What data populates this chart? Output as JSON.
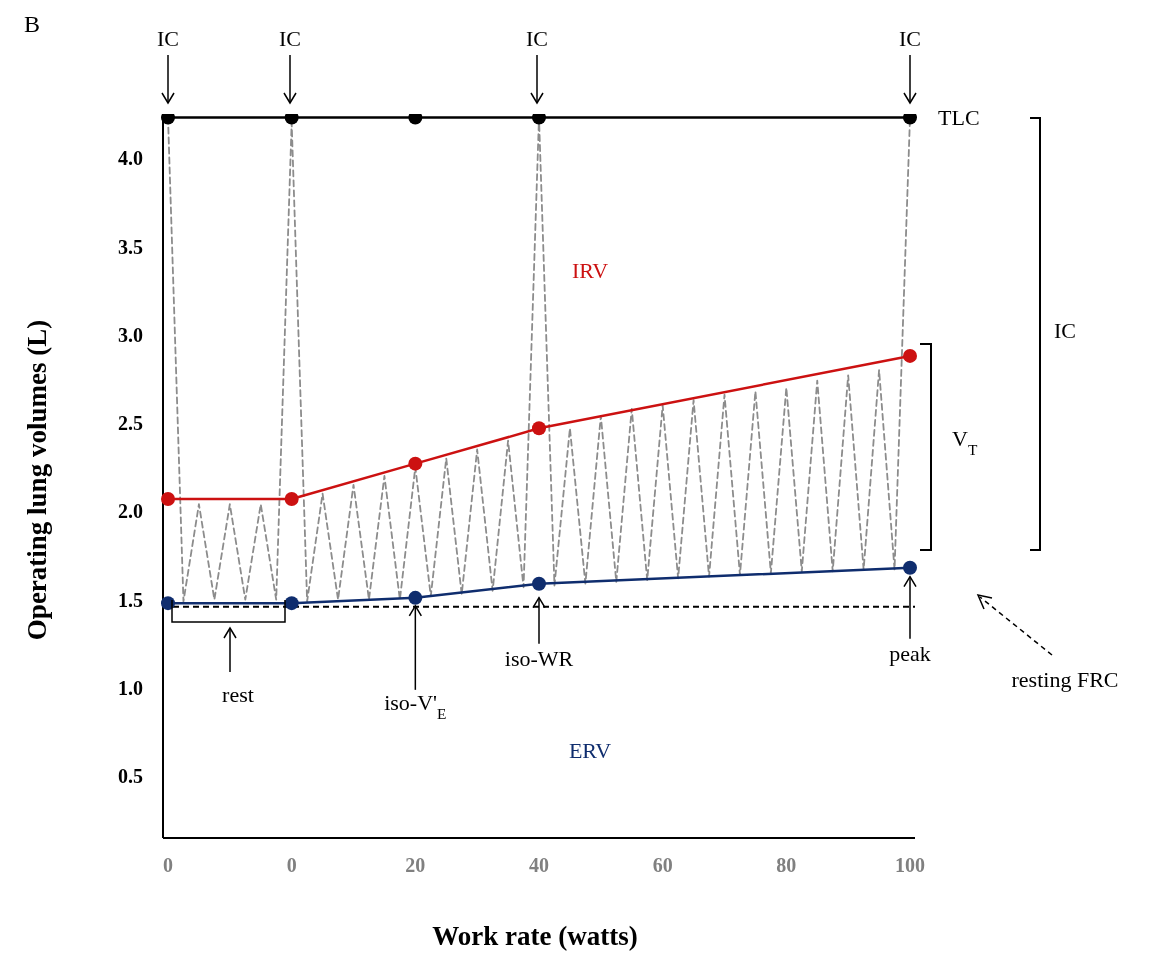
{
  "chart_data": {
    "type": "line",
    "title": "B",
    "xlabel": "Work rate (watts)",
    "ylabel": "Operating lung volumes (L)",
    "categories": [
      "0",
      null,
      null,
      null,
      null,
      null,
      null,
      null,
      "0",
      null,
      null,
      null,
      null,
      null,
      null,
      null,
      "20",
      null,
      null,
      null,
      null,
      null,
      null,
      null,
      "40",
      null,
      null,
      null,
      null,
      null,
      null,
      null,
      "60",
      null,
      null,
      null,
      null,
      null,
      null,
      null,
      "80",
      null,
      null,
      null,
      null,
      null,
      null,
      null,
      "100"
    ],
    "series": [
      {
        "color": "#8c8c8c",
        "marker": "none",
        "line_style": "dashed",
        "values": [
          4.23,
          1.49,
          2.04,
          1.5,
          2.04,
          1.5,
          2.04,
          1.5,
          4.2,
          1.49,
          2.1,
          1.5,
          2.15,
          1.5,
          2.2,
          1.5,
          2.25,
          1.52,
          2.3,
          1.53,
          2.35,
          1.55,
          2.4,
          1.57,
          4.23,
          1.58,
          2.47,
          1.59,
          2.54,
          1.6,
          2.58,
          1.61,
          2.6,
          1.62,
          2.63,
          1.63,
          2.66,
          1.64,
          2.68,
          1.65,
          2.7,
          1.66,
          2.74,
          1.66,
          2.77,
          1.67,
          2.8,
          1.67,
          4.23
        ]
      },
      {
        "color": "#000000",
        "marker": "circle",
        "line_style": "solid",
        "values": [
          4.23,
          null,
          null,
          null,
          null,
          null,
          null,
          null,
          4.23,
          null,
          null,
          null,
          null,
          null,
          null,
          null,
          4.23,
          null,
          null,
          null,
          null,
          null,
          null,
          null,
          4.23,
          null,
          null,
          null,
          null,
          null,
          null,
          null,
          null,
          null,
          null,
          null,
          null,
          null,
          null,
          null,
          null,
          null,
          null,
          null,
          null,
          null,
          null,
          null,
          4.23
        ]
      },
      {
        "color": "#cc1111",
        "marker": "circle",
        "line_style": "solid",
        "values": [
          2.07,
          null,
          null,
          null,
          null,
          null,
          null,
          null,
          2.07,
          null,
          null,
          null,
          null,
          null,
          null,
          null,
          2.27,
          null,
          null,
          null,
          null,
          null,
          null,
          null,
          2.47,
          null,
          null,
          null,
          null,
          null,
          null,
          null,
          null,
          null,
          null,
          null,
          null,
          null,
          null,
          null,
          null,
          null,
          null,
          null,
          null,
          null,
          null,
          null,
          2.88
        ]
      },
      {
        "color": "#0f2d6e",
        "marker": "circle",
        "line_style": "solid",
        "values": [
          1.48,
          null,
          null,
          null,
          null,
          null,
          null,
          null,
          1.48,
          null,
          null,
          null,
          null,
          null,
          null,
          null,
          1.51,
          null,
          null,
          null,
          null,
          null,
          null,
          null,
          1.59,
          null,
          null,
          null,
          null,
          null,
          null,
          null,
          null,
          null,
          null,
          null,
          null,
          null,
          null,
          null,
          null,
          null,
          null,
          null,
          null,
          null,
          null,
          null,
          1.68
        ]
      }
    ],
    "ylim": [
      0.15,
      4.25
    ],
    "yticks": [
      {
        "value": 0.5,
        "label": "0.5"
      },
      {
        "value": 1,
        "label": "1.0"
      },
      {
        "value": 1.5,
        "label": "1.5"
      },
      {
        "value": 2,
        "label": "2.0"
      },
      {
        "value": 2.5,
        "label": "2.5"
      },
      {
        "value": 3,
        "label": "3.0"
      },
      {
        "value": 3.5,
        "label": "3.5"
      },
      {
        "value": 4,
        "label": "4.0"
      }
    ],
    "ref_lines": [
      {
        "axis": "y",
        "value": 1.46,
        "label": "resting FRC",
        "color": "#000000",
        "line_style": "dashed"
      }
    ],
    "annotations": [
      "IC",
      "IC",
      "IC",
      "IC",
      "TLC",
      "IRV",
      "ERV",
      "IC",
      "V$_{T}$",
      "rest",
      {
        "text": "iso-V'$_{E}$",
        "x": "20",
        "y": 1.51
      },
      {
        "text": "iso-WR",
        "x": "40",
        "y": 1.59
      },
      {
        "text": "peak",
        "x": "100",
        "y": 1.63
      }
    ],
    "grid": false,
    "legend": false
  }
}
